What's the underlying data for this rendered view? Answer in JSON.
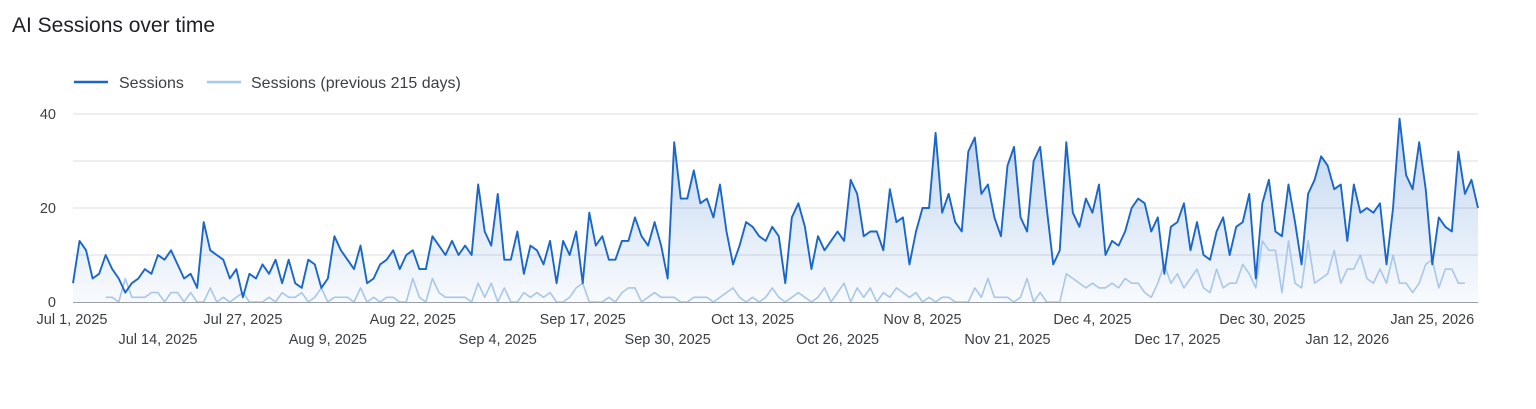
{
  "chart_data": {
    "type": "line",
    "title": "AI Sessions over time",
    "xlabel": "",
    "ylabel": "",
    "ylim": [
      0,
      40
    ],
    "y_ticks": [
      0,
      20,
      40
    ],
    "grid": true,
    "legend_position": "top-left",
    "colors": {
      "primary": "#1a67c9",
      "secondary": "#a8c7ea",
      "area_top": "#1a67c9",
      "grid": "#dadce0",
      "baseline": "#9aa0a6"
    },
    "x_tick_labels": [
      {
        "label": "Jul 1, 2025",
        "index": 0
      },
      {
        "label": "Jul 14, 2025",
        "index": 13
      },
      {
        "label": "Jul 27, 2025",
        "index": 26
      },
      {
        "label": "Aug 9, 2025",
        "index": 39
      },
      {
        "label": "Aug 22, 2025",
        "index": 52
      },
      {
        "label": "Sep 4, 2025",
        "index": 65
      },
      {
        "label": "Sep 17, 2025",
        "index": 78
      },
      {
        "label": "Sep 30, 2025",
        "index": 91
      },
      {
        "label": "Oct 13, 2025",
        "index": 104
      },
      {
        "label": "Oct 26, 2025",
        "index": 117
      },
      {
        "label": "Nov 8, 2025",
        "index": 130
      },
      {
        "label": "Nov 21, 2025",
        "index": 143
      },
      {
        "label": "Dec 4, 2025",
        "index": 156
      },
      {
        "label": "Dec 17, 2025",
        "index": 169
      },
      {
        "label": "Dec 30, 2025",
        "index": 182
      },
      {
        "label": "Jan 12, 2026",
        "index": 195
      },
      {
        "label": "Jan 25, 2026",
        "index": 208
      }
    ],
    "series": [
      {
        "name": "Sessions",
        "color": "#1a67c9",
        "values": [
          4,
          13,
          11,
          5,
          6,
          10,
          7,
          5,
          2,
          4,
          5,
          7,
          6,
          10,
          9,
          11,
          8,
          5,
          6,
          3,
          17,
          11,
          10,
          9,
          5,
          7,
          1,
          6,
          5,
          8,
          6,
          9,
          4,
          9,
          4,
          3,
          9,
          8,
          3,
          5,
          14,
          11,
          9,
          7,
          12,
          4,
          5,
          8,
          9,
          11,
          7,
          10,
          11,
          7,
          7,
          14,
          12,
          10,
          13,
          10,
          12,
          10,
          25,
          15,
          12,
          23,
          9,
          9,
          15,
          6,
          12,
          11,
          8,
          13,
          4,
          13,
          10,
          15,
          4,
          19,
          12,
          14,
          9,
          9,
          13,
          13,
          18,
          14,
          12,
          17,
          12,
          5,
          34,
          22,
          22,
          28,
          21,
          22,
          18,
          25,
          15,
          8,
          12,
          17,
          16,
          14,
          13,
          16,
          14,
          4,
          18,
          21,
          16,
          7,
          14,
          11,
          13,
          15,
          13,
          26,
          23,
          14,
          15,
          15,
          11,
          24,
          17,
          18,
          8,
          15,
          20,
          20,
          36,
          19,
          23,
          17,
          15,
          32,
          35,
          23,
          25,
          18,
          14,
          29,
          33,
          18,
          15,
          30,
          33,
          20,
          8,
          11,
          34,
          19,
          16,
          22,
          19,
          25,
          10,
          13,
          12,
          15,
          20,
          22,
          21,
          15,
          18,
          6,
          16,
          17,
          21,
          11,
          17,
          10,
          9,
          15,
          18,
          10,
          16,
          17,
          23,
          5,
          21,
          26,
          15,
          14,
          25,
          17,
          8,
          23,
          26,
          31,
          29,
          24,
          25,
          13,
          25,
          19,
          20,
          19,
          21,
          8,
          20,
          39,
          27,
          24,
          34,
          24,
          8,
          18,
          16,
          15,
          32,
          23,
          26,
          20
        ]
      },
      {
        "name": "Sessions (previous 215 days)",
        "color": "#a8c7ea",
        "values": [
          null,
          null,
          null,
          null,
          null,
          1,
          1,
          0,
          5,
          1,
          1,
          1,
          2,
          2,
          0,
          2,
          2,
          0,
          2,
          0,
          0,
          3,
          0,
          1,
          0,
          1,
          2,
          0,
          0,
          0,
          1,
          0,
          2,
          1,
          1,
          2,
          0,
          1,
          3,
          0,
          1,
          1,
          1,
          0,
          3,
          0,
          1,
          0,
          1,
          1,
          0,
          0,
          5,
          1,
          0,
          5,
          2,
          1,
          1,
          1,
          1,
          0,
          4,
          1,
          4,
          0,
          3,
          0,
          0,
          2,
          1,
          2,
          1,
          2,
          0,
          0,
          1,
          3,
          4,
          0,
          0,
          0,
          1,
          0,
          2,
          3,
          3,
          0,
          1,
          2,
          1,
          1,
          1,
          0,
          0,
          1,
          1,
          1,
          0,
          1,
          2,
          3,
          1,
          0,
          1,
          0,
          1,
          3,
          1,
          0,
          1,
          2,
          1,
          0,
          1,
          3,
          0,
          2,
          4,
          0,
          3,
          1,
          3,
          0,
          2,
          1,
          3,
          2,
          1,
          2,
          0,
          1,
          0,
          1,
          1,
          0,
          0,
          0,
          3,
          1,
          5,
          1,
          1,
          1,
          0,
          1,
          5,
          0,
          2,
          0,
          0,
          0,
          6,
          5,
          4,
          3,
          4,
          3,
          3,
          4,
          3,
          5,
          4,
          4,
          2,
          1,
          4,
          8,
          4,
          6,
          3,
          5,
          7,
          3,
          2,
          7,
          3,
          4,
          4,
          8,
          6,
          3,
          13,
          11,
          11,
          2,
          13,
          4,
          3,
          13,
          4,
          5,
          6,
          11,
          4,
          7,
          7,
          10,
          5,
          4,
          7,
          4,
          10,
          4,
          4,
          2,
          4,
          8,
          9,
          3,
          7,
          7,
          4,
          4
        ]
      }
    ]
  }
}
